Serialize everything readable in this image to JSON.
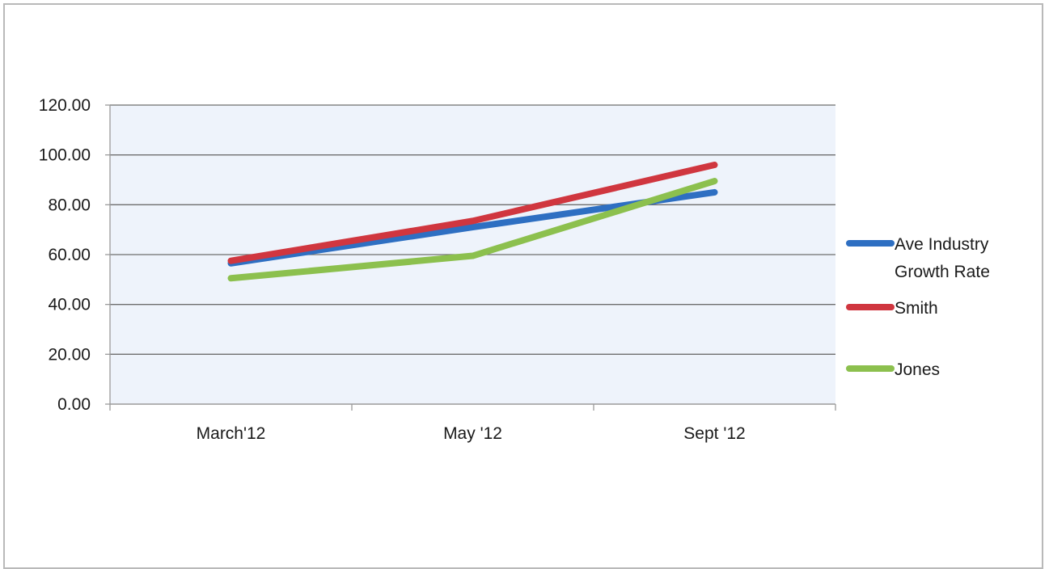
{
  "chart_data": {
    "type": "line",
    "title": "",
    "xlabel": "",
    "ylabel": "",
    "categories": [
      "March'12",
      "May '12",
      "Sept '12"
    ],
    "ylim": [
      0,
      120
    ],
    "yticks": [
      "0.00",
      "20.00",
      "40.00",
      "60.00",
      "80.00",
      "100.00",
      "120.00"
    ],
    "grid": true,
    "legend_position": "right",
    "series": [
      {
        "name": "Ave Industry Growth Rate",
        "legend_lines": [
          "Ave Industry",
          "Growth Rate"
        ],
        "color": "#2e6fc2",
        "values": [
          56.5,
          71,
          85
        ]
      },
      {
        "name": "Smith",
        "legend_lines": [
          "Smith"
        ],
        "color": "#d0363f",
        "values": [
          57.5,
          73.5,
          96
        ]
      },
      {
        "name": "Jones",
        "legend_lines": [
          "Jones"
        ],
        "color": "#8cc04e",
        "values": [
          50.5,
          59.5,
          89.5
        ]
      }
    ],
    "colors": {
      "plot_background": "#eef3fb",
      "gridline": "#6e6e6e",
      "axis": "#9a9a9a"
    }
  }
}
